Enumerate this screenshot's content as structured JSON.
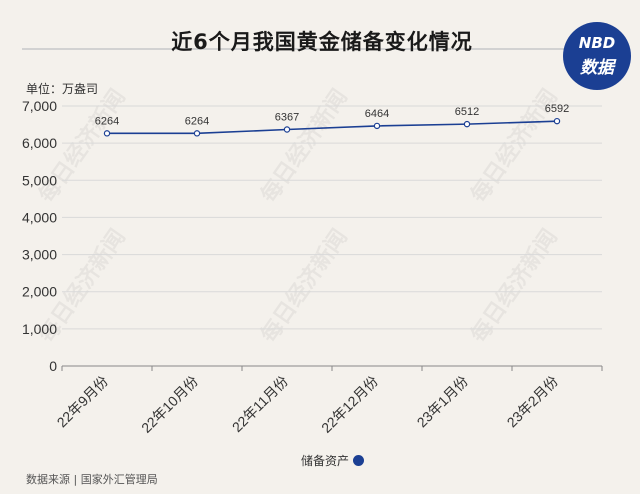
{
  "title": "近6个月我国黄金储备变化情况",
  "logo": {
    "line1": "NBD",
    "line2": "数据"
  },
  "watermark": "每日经济新闻",
  "unit": "单位：万盎司",
  "source": "数据来源 | 国家外汇管理局",
  "colors": {
    "line": "#1b3f93",
    "background": "#f4f1ec",
    "grid": "#d9d9d9"
  },
  "chart_data": {
    "type": "line",
    "categories": [
      "22年9月份",
      "22年10月份",
      "22年11月份",
      "22年12月份",
      "23年1月份",
      "23年2月份"
    ],
    "series": [
      {
        "name": "储备资产",
        "values": [
          6264,
          6264,
          6367,
          6464,
          6512,
          6592
        ]
      }
    ],
    "data_labels": [
      "6264",
      "6264",
      "6367",
      "6464",
      "6512",
      "6592"
    ],
    "yticks": [
      0,
      1000,
      2000,
      3000,
      4000,
      5000,
      6000,
      7000
    ],
    "ytick_labels": [
      "0",
      "1,000",
      "2,000",
      "3,000",
      "4,000",
      "5,000",
      "6,000",
      "7,000"
    ],
    "ylim": [
      0,
      7000
    ],
    "grid": true,
    "legend_position": "bottom-center"
  }
}
